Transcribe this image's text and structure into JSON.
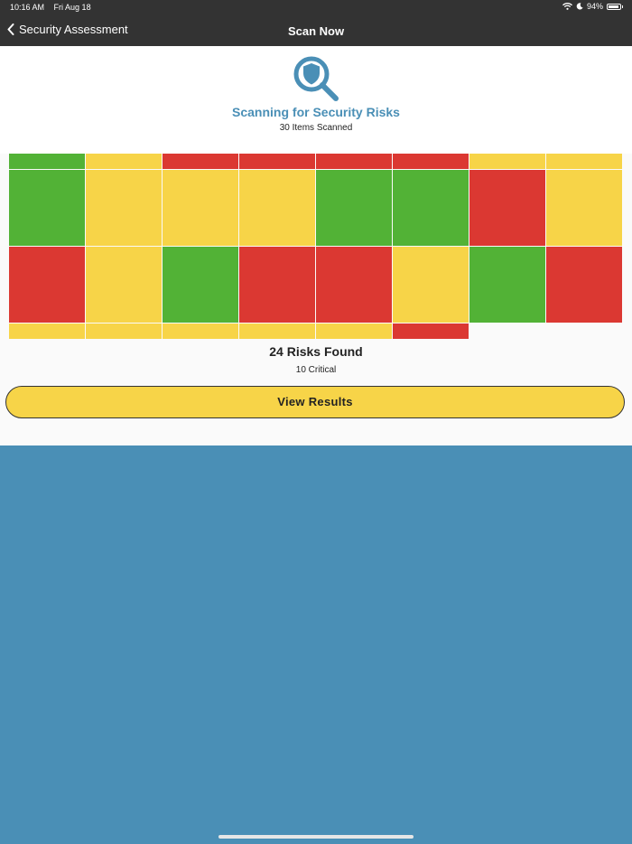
{
  "status_bar": {
    "time": "10:16 AM",
    "date": "Fri Aug 18",
    "battery": "94%",
    "battery_level": 0.94,
    "icons": [
      "wifi-icon",
      "moon-icon",
      "battery-icon"
    ]
  },
  "nav": {
    "back_label": "Security Assessment",
    "title": "Scan Now"
  },
  "scan": {
    "icon": "shield-magnifier-icon",
    "title": "Scanning for Security Risks",
    "subtitle": "30 Items Scanned"
  },
  "grid": {
    "colors": {
      "green": "#52b236",
      "yellow": "#f7d448",
      "red": "#db3832"
    },
    "rows": [
      [
        "green",
        "yellow",
        "red",
        "red",
        "red",
        "red",
        "yellow",
        "yellow"
      ],
      [
        "green",
        "yellow",
        "yellow",
        "yellow",
        "green",
        "green",
        "red",
        "yellow"
      ],
      [
        "red",
        "yellow",
        "green",
        "red",
        "red",
        "yellow",
        "green",
        "red"
      ],
      [
        "yellow",
        "yellow",
        "yellow",
        "yellow",
        "yellow",
        "red"
      ]
    ]
  },
  "result": {
    "title": "24 Risks Found",
    "subtitle": "10 Critical",
    "button_label": "View Results"
  },
  "colors": {
    "accent": "#4a8fb6",
    "bar": "#333333",
    "button": "#f7d448"
  }
}
